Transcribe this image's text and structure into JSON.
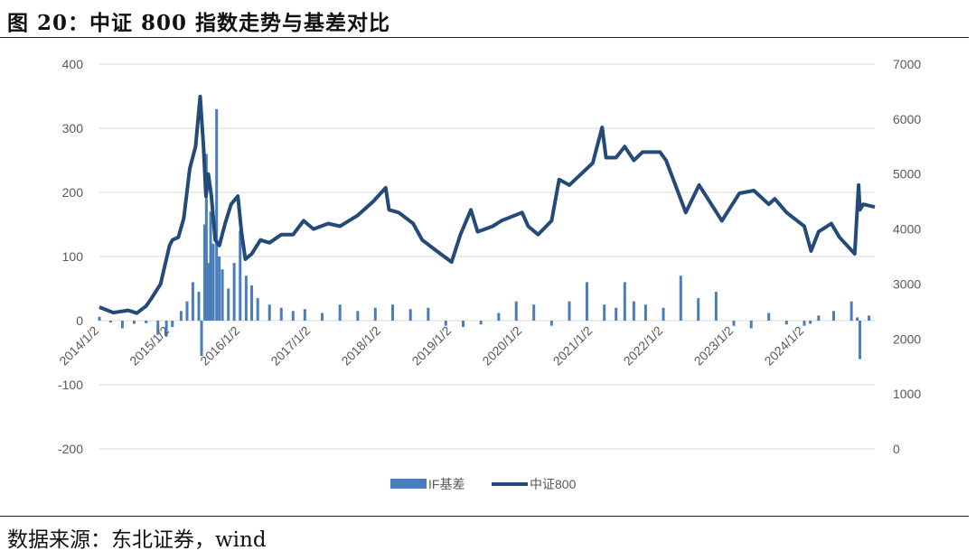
{
  "figure": {
    "title": "图 20：中证 800 指数走势与基差对比",
    "source": "数据来源：东北证券，wind"
  },
  "colors": {
    "basis": "#4a7ebb",
    "index": "#244a7a",
    "grid": "#d9d9d9",
    "axis_text": "#595959"
  },
  "chart_data": {
    "type": "combo",
    "x_tick_labels": [
      "2014/1/2",
      "2015/1/2",
      "2016/1/2",
      "2017/1/2",
      "2018/1/2",
      "2019/1/2",
      "2020/1/2",
      "2021/1/2",
      "2022/1/2",
      "2023/1/2",
      "2024/1/2"
    ],
    "x_range": [
      "2014-01-02",
      "2024-12-31"
    ],
    "left_axis": {
      "ylim": [
        -200,
        400
      ],
      "ticks": [
        -200,
        -100,
        0,
        100,
        200,
        300,
        400
      ]
    },
    "right_axis": {
      "ylim": [
        0,
        7000
      ],
      "ticks": [
        0,
        1000,
        2000,
        3000,
        4000,
        5000,
        6000,
        7000
      ]
    },
    "grid": true,
    "legend_position": "bottom",
    "series": [
      {
        "name": "IF基差",
        "type": "bar",
        "axis": "left",
        "points": [
          [
            "2014-01-02",
            6
          ],
          [
            "2014-03-01",
            -3
          ],
          [
            "2014-05-01",
            -12
          ],
          [
            "2014-07-01",
            -5
          ],
          [
            "2014-09-01",
            -4
          ],
          [
            "2014-11-01",
            -22
          ],
          [
            "2014-12-15",
            -25
          ],
          [
            "2015-01-15",
            -10
          ],
          [
            "2015-03-01",
            15
          ],
          [
            "2015-04-01",
            30
          ],
          [
            "2015-05-01",
            60
          ],
          [
            "2015-06-01",
            45
          ],
          [
            "2015-06-15",
            -55
          ],
          [
            "2015-07-01",
            150
          ],
          [
            "2015-07-10",
            260
          ],
          [
            "2015-07-20",
            90
          ],
          [
            "2015-08-01",
            170
          ],
          [
            "2015-08-15",
            120
          ],
          [
            "2015-09-01",
            330
          ],
          [
            "2015-09-15",
            100
          ],
          [
            "2015-10-01",
            80
          ],
          [
            "2015-11-01",
            50
          ],
          [
            "2015-12-01",
            90
          ],
          [
            "2016-01-01",
            140
          ],
          [
            "2016-02-01",
            70
          ],
          [
            "2016-03-01",
            55
          ],
          [
            "2016-04-01",
            35
          ],
          [
            "2016-06-01",
            25
          ],
          [
            "2016-08-01",
            20
          ],
          [
            "2016-10-01",
            15
          ],
          [
            "2016-12-01",
            18
          ],
          [
            "2017-03-01",
            12
          ],
          [
            "2017-06-01",
            25
          ],
          [
            "2017-09-01",
            15
          ],
          [
            "2017-12-01",
            20
          ],
          [
            "2018-03-01",
            25
          ],
          [
            "2018-06-01",
            18
          ],
          [
            "2018-09-01",
            20
          ],
          [
            "2018-12-01",
            -8
          ],
          [
            "2019-03-01",
            -10
          ],
          [
            "2019-06-01",
            -6
          ],
          [
            "2019-09-01",
            12
          ],
          [
            "2019-12-01",
            30
          ],
          [
            "2020-03-01",
            25
          ],
          [
            "2020-06-01",
            -8
          ],
          [
            "2020-09-01",
            30
          ],
          [
            "2020-12-01",
            60
          ],
          [
            "2021-03-01",
            25
          ],
          [
            "2021-05-01",
            20
          ],
          [
            "2021-06-15",
            60
          ],
          [
            "2021-08-01",
            30
          ],
          [
            "2021-10-01",
            25
          ],
          [
            "2022-01-01",
            20
          ],
          [
            "2022-04-01",
            70
          ],
          [
            "2022-07-01",
            35
          ],
          [
            "2022-10-01",
            45
          ],
          [
            "2023-01-01",
            -8
          ],
          [
            "2023-04-01",
            -12
          ],
          [
            "2023-07-01",
            12
          ],
          [
            "2023-10-01",
            -6
          ],
          [
            "2024-01-01",
            -8
          ],
          [
            "2024-02-01",
            -5
          ],
          [
            "2024-03-15",
            8
          ],
          [
            "2024-06-01",
            15
          ],
          [
            "2024-09-01",
            30
          ],
          [
            "2024-10-01",
            5
          ],
          [
            "2024-10-15",
            -60
          ],
          [
            "2024-12-01",
            8
          ]
        ]
      },
      {
        "name": "中证800",
        "type": "line",
        "axis": "right",
        "points": [
          [
            "2014-01-02",
            2580
          ],
          [
            "2014-03-15",
            2480
          ],
          [
            "2014-06-01",
            2520
          ],
          [
            "2014-07-15",
            2470
          ],
          [
            "2014-09-01",
            2600
          ],
          [
            "2014-10-01",
            2750
          ],
          [
            "2014-11-15",
            3000
          ],
          [
            "2014-12-31",
            3700
          ],
          [
            "2015-01-15",
            3800
          ],
          [
            "2015-02-15",
            3850
          ],
          [
            "2015-03-15",
            4200
          ],
          [
            "2015-04-15",
            5100
          ],
          [
            "2015-05-15",
            5500
          ],
          [
            "2015-06-08",
            6410
          ],
          [
            "2015-06-25",
            5500
          ],
          [
            "2015-07-08",
            4600
          ],
          [
            "2015-07-20",
            5000
          ],
          [
            "2015-08-05",
            4600
          ],
          [
            "2015-08-25",
            3800
          ],
          [
            "2015-09-15",
            3700
          ],
          [
            "2015-10-15",
            4100
          ],
          [
            "2015-11-15",
            4450
          ],
          [
            "2015-12-20",
            4600
          ],
          [
            "2016-01-08",
            3950
          ],
          [
            "2016-01-28",
            3450
          ],
          [
            "2016-03-01",
            3550
          ],
          [
            "2016-04-15",
            3800
          ],
          [
            "2016-06-01",
            3750
          ],
          [
            "2016-08-01",
            3900
          ],
          [
            "2016-10-01",
            3900
          ],
          [
            "2016-11-25",
            4150
          ],
          [
            "2017-01-15",
            4000
          ],
          [
            "2017-04-01",
            4100
          ],
          [
            "2017-06-01",
            4050
          ],
          [
            "2017-09-01",
            4250
          ],
          [
            "2017-11-20",
            4500
          ],
          [
            "2018-01-24",
            4750
          ],
          [
            "2018-02-10",
            4350
          ],
          [
            "2018-04-01",
            4300
          ],
          [
            "2018-06-15",
            4100
          ],
          [
            "2018-08-01",
            3800
          ],
          [
            "2018-10-15",
            3600
          ],
          [
            "2018-12-31",
            3400
          ],
          [
            "2019-02-15",
            3900
          ],
          [
            "2019-04-10",
            4350
          ],
          [
            "2019-05-15",
            3950
          ],
          [
            "2019-08-01",
            4050
          ],
          [
            "2019-09-15",
            4150
          ],
          [
            "2019-12-31",
            4300
          ],
          [
            "2020-02-01",
            4050
          ],
          [
            "2020-03-23",
            3900
          ],
          [
            "2020-06-01",
            4150
          ],
          [
            "2020-07-10",
            4900
          ],
          [
            "2020-09-01",
            4800
          ],
          [
            "2020-12-31",
            5200
          ],
          [
            "2021-02-18",
            5850
          ],
          [
            "2021-03-10",
            5300
          ],
          [
            "2021-05-01",
            5300
          ],
          [
            "2021-06-15",
            5500
          ],
          [
            "2021-08-01",
            5250
          ],
          [
            "2021-09-15",
            5400
          ],
          [
            "2021-12-15",
            5400
          ],
          [
            "2022-01-15",
            5250
          ],
          [
            "2022-03-15",
            4700
          ],
          [
            "2022-04-27",
            4300
          ],
          [
            "2022-07-05",
            4800
          ],
          [
            "2022-10-31",
            4150
          ],
          [
            "2023-01-30",
            4650
          ],
          [
            "2023-04-15",
            4700
          ],
          [
            "2023-07-01",
            4450
          ],
          [
            "2023-08-01",
            4550
          ],
          [
            "2023-10-01",
            4300
          ],
          [
            "2024-01-01",
            4050
          ],
          [
            "2024-02-05",
            3600
          ],
          [
            "2024-03-15",
            3950
          ],
          [
            "2024-05-20",
            4100
          ],
          [
            "2024-07-01",
            3850
          ],
          [
            "2024-09-18",
            3550
          ],
          [
            "2024-10-08",
            4800
          ],
          [
            "2024-10-15",
            4350
          ],
          [
            "2024-11-01",
            4450
          ],
          [
            "2024-12-31",
            4400
          ]
        ]
      }
    ]
  }
}
